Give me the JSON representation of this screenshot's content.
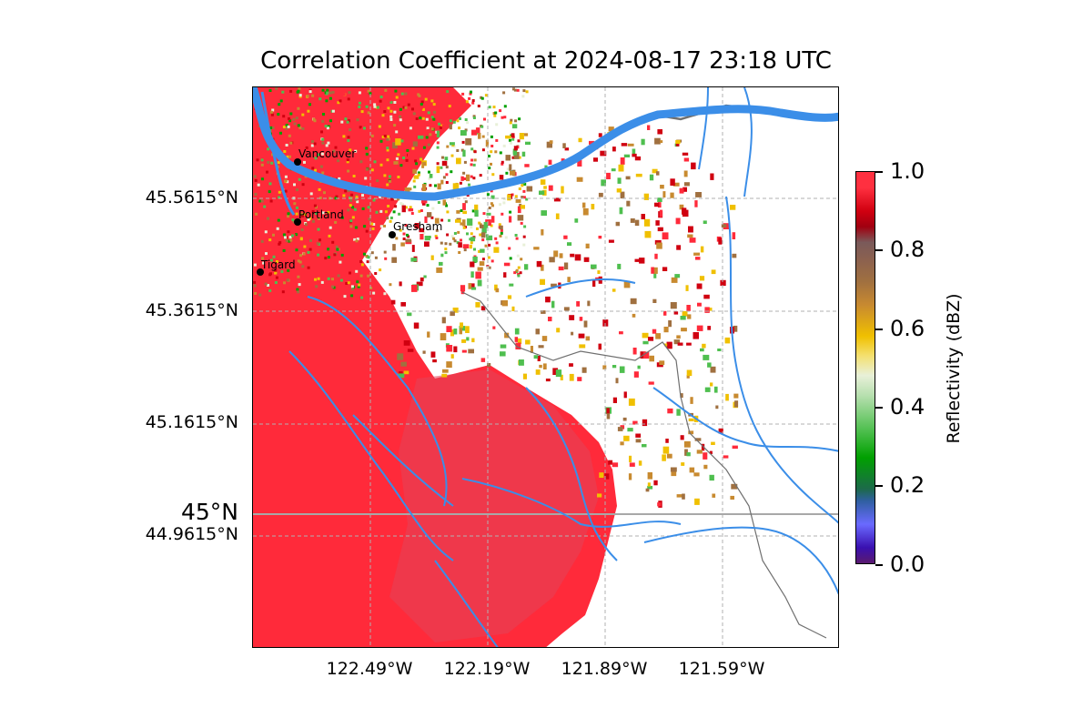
{
  "title": "Correlation Coefficient at 2024-08-17 23:18 UTC",
  "latitude_labels": [
    "45.5615°N",
    "45.3615°N",
    "45.1615°N",
    "44.9615°N"
  ],
  "latitude_highlight": "45°N",
  "longitude_labels": [
    "122.49°W",
    "122.19°W",
    "121.89°W",
    "121.59°W"
  ],
  "cities": [
    "Vancouver",
    "Portland",
    "Gresham",
    "Tigard"
  ],
  "colorbar": {
    "label": "Reflectivity (dBZ)",
    "ticks": [
      "0.0",
      "0.2",
      "0.4",
      "0.6",
      "0.8",
      "1.0"
    ],
    "min": 0.0,
    "max": 1.0
  },
  "colors": {
    "high_cc": "#ff2a3a",
    "river": "#3b8ee8",
    "border": "#6f6f6f",
    "grid": "#b0b0b0"
  }
}
